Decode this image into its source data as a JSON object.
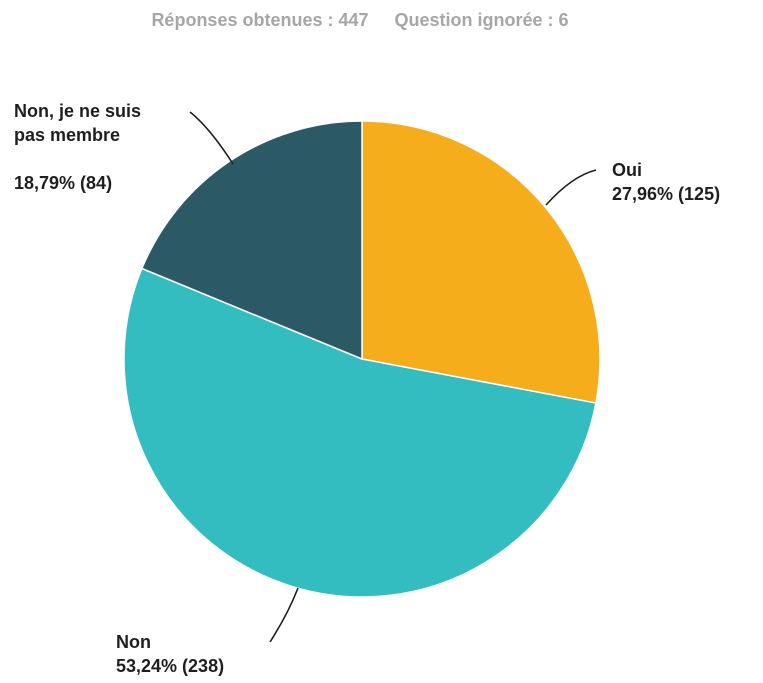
{
  "header": {
    "responses": "Réponses obtenues : 447",
    "skipped": "Question ignorée : 6"
  },
  "chart_data": {
    "type": "pie",
    "title": "",
    "total_responses": 447,
    "slices": [
      {
        "name": "Oui",
        "label_lines": [
          "Oui"
        ],
        "value_text": "27,96% (125)",
        "percent": 27.96,
        "count": 125,
        "color": "#f5ad1b"
      },
      {
        "name": "Non",
        "label_lines": [
          "Non"
        ],
        "value_text": "53,24% (238)",
        "percent": 53.24,
        "count": 238,
        "color": "#33bdc1"
      },
      {
        "name": "Non, je ne suis pas membre",
        "label_lines": [
          "Non, je ne suis",
          "pas membre"
        ],
        "value_text": "18,79% (84)",
        "percent": 18.79,
        "count": 84,
        "color": "#2b5966"
      }
    ]
  }
}
